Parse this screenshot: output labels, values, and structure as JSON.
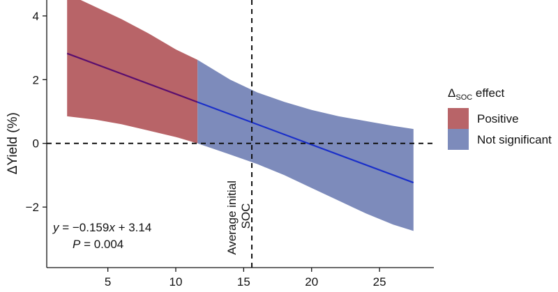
{
  "chart_data": {
    "type": "area",
    "xlabel": "",
    "ylabel": "ΔYield (%)",
    "xlim": [
      0.5,
      29
    ],
    "ylim": [
      -3.9,
      4.5
    ],
    "x_ticks": [
      5,
      10,
      15,
      20,
      25
    ],
    "y_ticks": [
      -2,
      0,
      2,
      4
    ],
    "x_tick_labels": [
      "5",
      "10",
      "15",
      "20",
      "25"
    ],
    "y_tick_labels": [
      "−2",
      "0",
      "2",
      "4"
    ],
    "fit_line": {
      "slope": -0.159,
      "intercept": 3.14,
      "x_start": 2.0,
      "x_end": 27.5,
      "segments": [
        {
          "effect": "Positive",
          "x_start": 2.0,
          "x_end": 11.6,
          "color": "#5a0e6e"
        },
        {
          "effect": "Not significant",
          "x_start": 11.6,
          "x_end": 27.5,
          "color": "#1a2fc9"
        }
      ]
    },
    "confidence_band": {
      "x": [
        2.0,
        4.0,
        6.0,
        8.0,
        10.0,
        11.6,
        14.0,
        16.0,
        18.0,
        20.0,
        22.0,
        24.0,
        26.0,
        27.5
      ],
      "upper": [
        4.7,
        4.3,
        3.9,
        3.45,
        2.95,
        2.62,
        2.0,
        1.6,
        1.3,
        1.05,
        0.85,
        0.7,
        0.55,
        0.45
      ],
      "lower": [
        0.85,
        0.75,
        0.6,
        0.4,
        0.2,
        0.0,
        -0.35,
        -0.65,
        -1.0,
        -1.4,
        -1.8,
        -2.2,
        -2.55,
        -2.75
      ]
    },
    "regions": [
      {
        "effect": "Positive",
        "x_start": 2.0,
        "x_end": 11.6,
        "color": "#b86468"
      },
      {
        "effect": "Not significant",
        "x_start": 11.6,
        "x_end": 27.5,
        "color": "#7d8bbb"
      }
    ],
    "reference_lines": {
      "horizontal_y": 0,
      "vertical_x": 15.6,
      "vertical_label": [
        "Average initial",
        "SOC"
      ]
    },
    "equation": {
      "y_var": "y",
      "rhs_prefix": " = −0.159",
      "x_var": "x",
      "rhs_suffix": " + 3.14",
      "p_var": "P",
      "p_rest": " = 0.004"
    },
    "legend": {
      "title_delta": "Δ",
      "title_sub": "SOC",
      "title_rest": " effect",
      "position": "right",
      "items": [
        {
          "label": "Positive",
          "color": "#b86468"
        },
        {
          "label": "Not significant",
          "color": "#7d8bbb"
        }
      ]
    },
    "grid": false
  }
}
